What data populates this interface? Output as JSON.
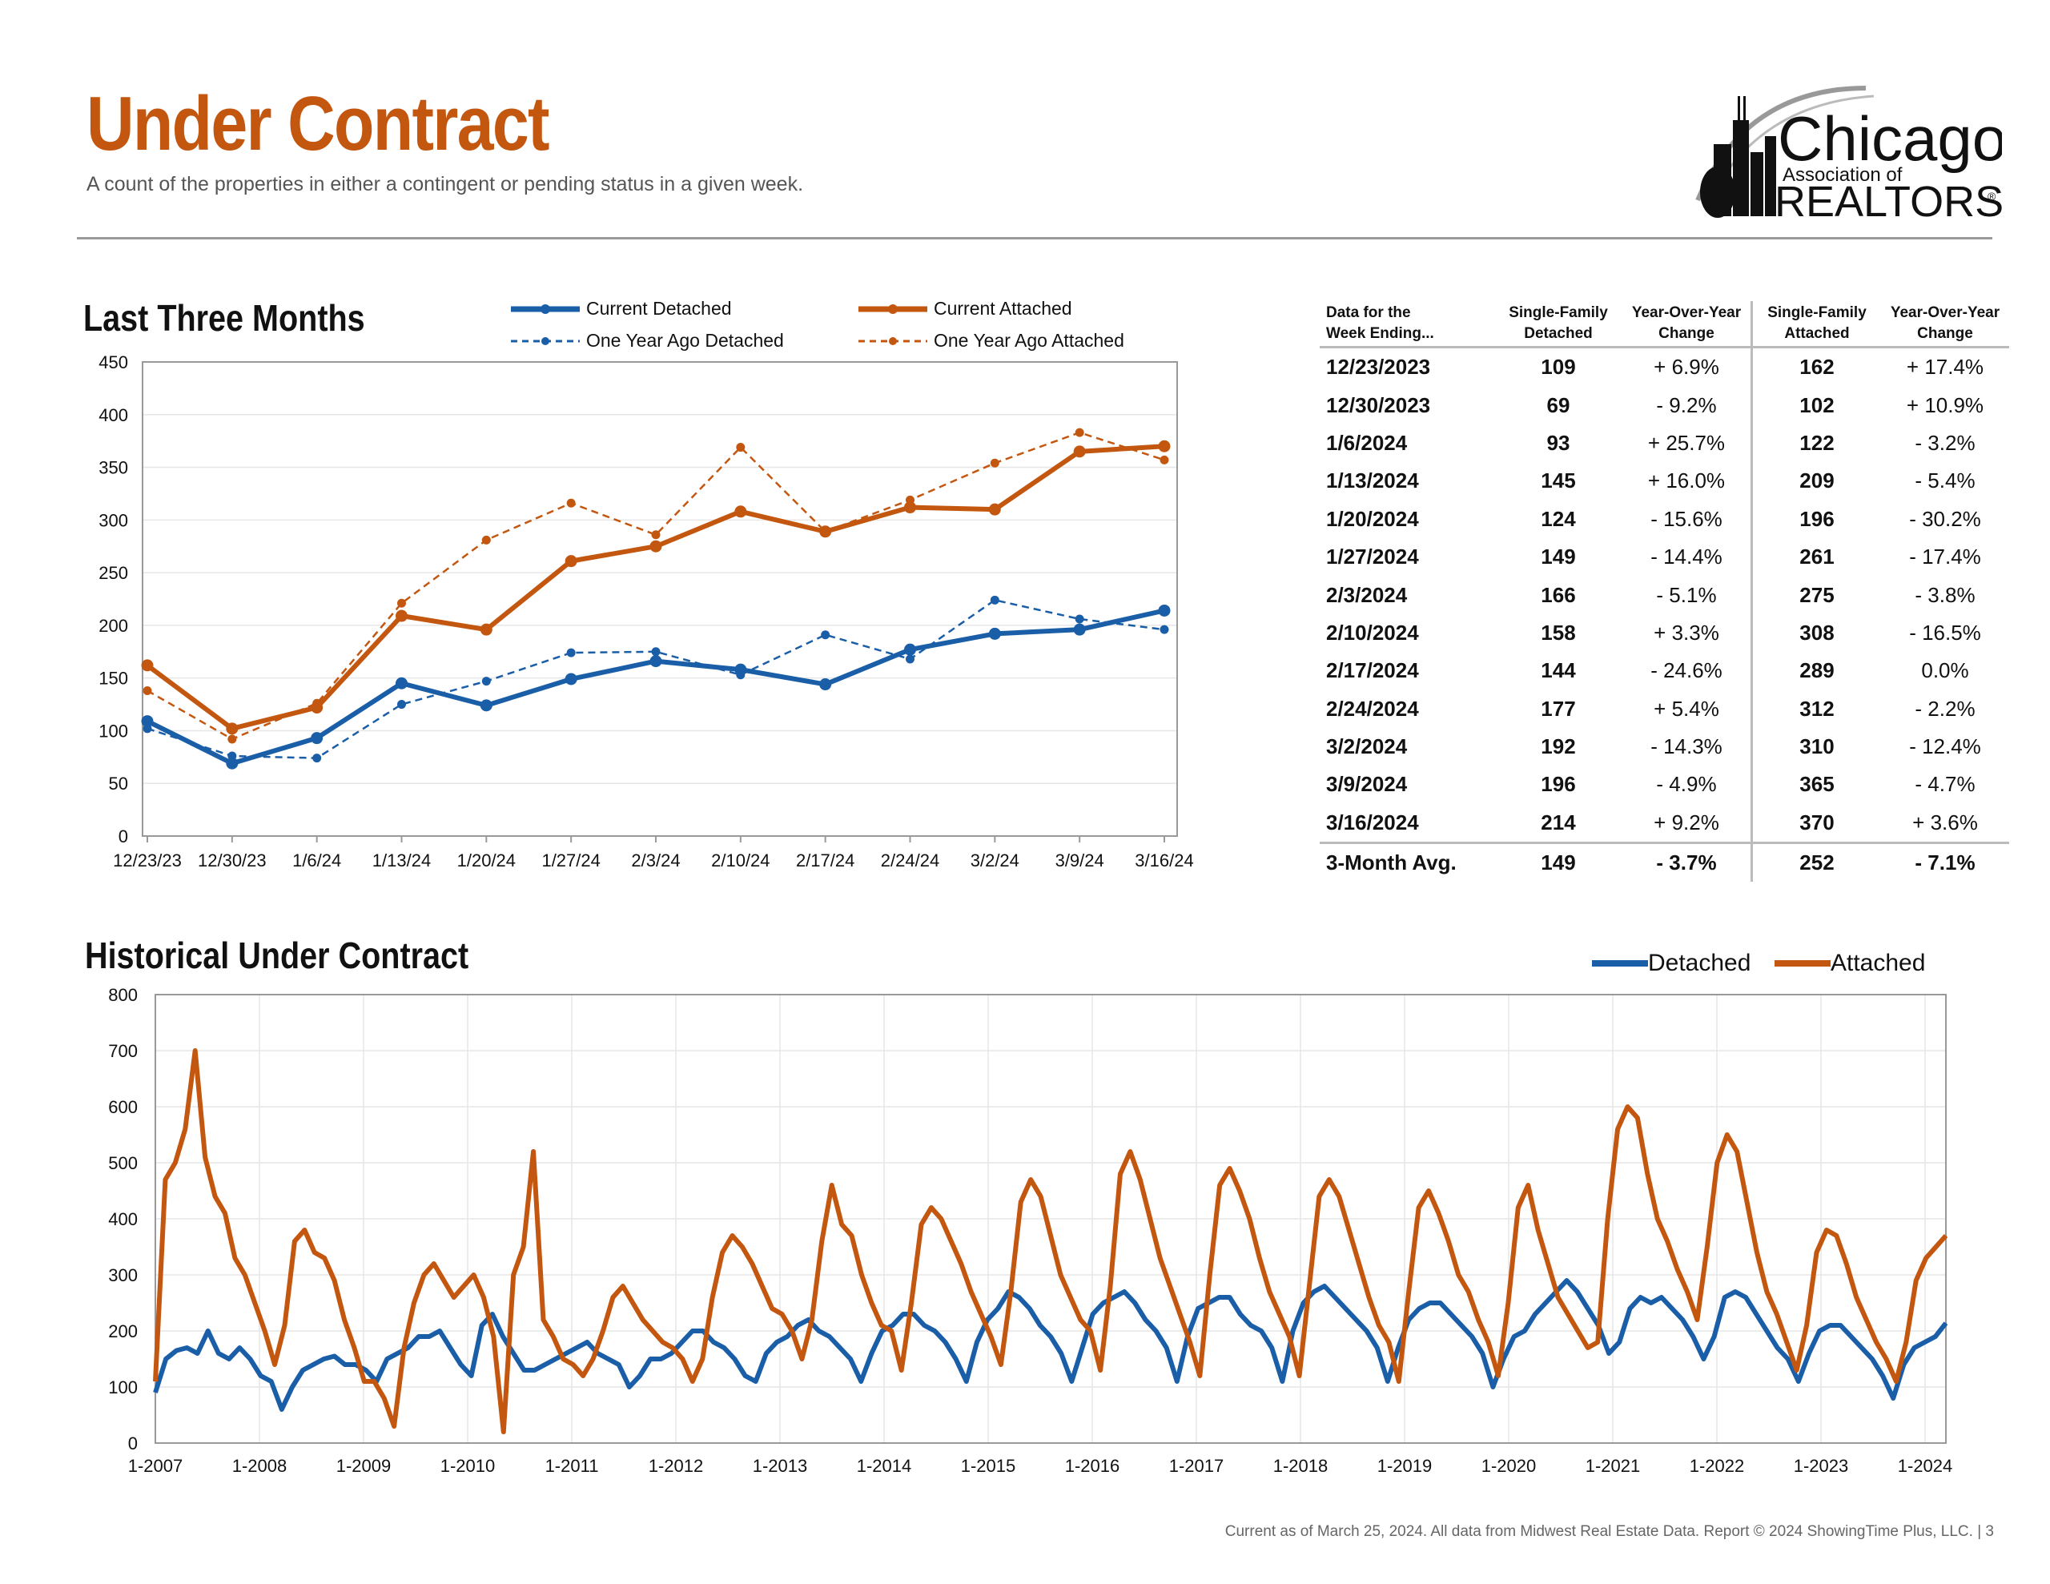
{
  "header": {
    "title": "Under Contract",
    "subtitle": "A count of the properties in either a contingent or pending status in a given week."
  },
  "logo": {
    "line1": "Chicago",
    "line2": "Association of",
    "line3": "REALTORS",
    "mark": "®"
  },
  "colors": {
    "detached": "#1a5ea8",
    "attached": "#c4570f",
    "accent": "#c4570f"
  },
  "section1": {
    "title": "Last Three Months"
  },
  "section2": {
    "title": "Historical Under Contract"
  },
  "legend1": {
    "current_detached": "Current Detached",
    "current_attached": "Current Attached",
    "year_ago_detached": "One Year Ago Detached",
    "year_ago_attached": "One Year Ago Attached"
  },
  "legend2": {
    "detached": "Detached",
    "attached": "Attached"
  },
  "table": {
    "headers": [
      "Data for the\nWeek Ending...",
      "Single-Family\nDetached",
      "Year-Over-Year\nChange",
      "Single-Family\nAttached",
      "Year-Over-Year\nChange"
    ],
    "rows": [
      [
        "12/23/2023",
        "109",
        "+ 6.9%",
        "162",
        "+ 17.4%"
      ],
      [
        "12/30/2023",
        "69",
        "- 9.2%",
        "102",
        "+ 10.9%"
      ],
      [
        "1/6/2024",
        "93",
        "+ 25.7%",
        "122",
        "- 3.2%"
      ],
      [
        "1/13/2024",
        "145",
        "+ 16.0%",
        "209",
        "- 5.4%"
      ],
      [
        "1/20/2024",
        "124",
        "- 15.6%",
        "196",
        "- 30.2%"
      ],
      [
        "1/27/2024",
        "149",
        "- 14.4%",
        "261",
        "- 17.4%"
      ],
      [
        "2/3/2024",
        "166",
        "- 5.1%",
        "275",
        "- 3.8%"
      ],
      [
        "2/10/2024",
        "158",
        "+ 3.3%",
        "308",
        "- 16.5%"
      ],
      [
        "2/17/2024",
        "144",
        "- 24.6%",
        "289",
        "0.0%"
      ],
      [
        "2/24/2024",
        "177",
        "+ 5.4%",
        "312",
        "- 2.2%"
      ],
      [
        "3/2/2024",
        "192",
        "- 14.3%",
        "310",
        "- 12.4%"
      ],
      [
        "3/9/2024",
        "196",
        "- 4.9%",
        "365",
        "- 4.7%"
      ],
      [
        "3/16/2024",
        "214",
        "+ 9.2%",
        "370",
        "+ 3.6%"
      ]
    ],
    "avg": [
      "3-Month Avg.",
      "149",
      "- 3.7%",
      "252",
      "- 7.1%"
    ]
  },
  "footer": "Current as of March 25, 2024.  All data from Midwest Real Estate Data. Report © 2024 ShowingTime Plus, LLC.  |  3",
  "chart_data": [
    {
      "type": "line",
      "title": "Last Three Months",
      "categories": [
        "12/23/23",
        "12/30/23",
        "1/6/24",
        "1/13/24",
        "1/20/24",
        "1/27/24",
        "2/3/24",
        "2/10/24",
        "2/17/24",
        "2/24/24",
        "3/2/24",
        "3/9/24",
        "3/16/24"
      ],
      "ylim": [
        0,
        450
      ],
      "yticks": [
        0,
        50,
        100,
        150,
        200,
        250,
        300,
        350,
        400,
        450
      ],
      "grid": true,
      "legend": "top",
      "series": [
        {
          "name": "Current Detached",
          "style": "solid",
          "color": "#1a5ea8",
          "values": [
            109,
            69,
            93,
            145,
            124,
            149,
            166,
            158,
            144,
            177,
            192,
            196,
            214
          ]
        },
        {
          "name": "Current Attached",
          "style": "solid",
          "color": "#c4570f",
          "values": [
            162,
            102,
            122,
            209,
            196,
            261,
            275,
            308,
            289,
            312,
            310,
            365,
            370
          ]
        },
        {
          "name": "One Year Ago Detached",
          "style": "dashed",
          "color": "#1a5ea8",
          "values": [
            102,
            76,
            74,
            125,
            147,
            174,
            175,
            153,
            191,
            168,
            224,
            206,
            196
          ]
        },
        {
          "name": "One Year Ago Attached",
          "style": "dashed",
          "color": "#c4570f",
          "values": [
            138,
            92,
            126,
            221,
            281,
            316,
            286,
            369,
            289,
            319,
            354,
            383,
            357
          ]
        }
      ]
    },
    {
      "type": "line",
      "title": "Historical Under Contract",
      "x_start": "1-2007",
      "xticks": [
        "1-2007",
        "1-2008",
        "1-2009",
        "1-2010",
        "1-2011",
        "1-2012",
        "1-2013",
        "1-2014",
        "1-2015",
        "1-2016",
        "1-2017",
        "1-2018",
        "1-2019",
        "1-2020",
        "1-2021",
        "1-2022",
        "1-2023",
        "1-2024"
      ],
      "ylim": [
        0,
        800
      ],
      "yticks": [
        0,
        100,
        200,
        300,
        400,
        500,
        600,
        700,
        800
      ],
      "grid": true,
      "legend": "top-right",
      "series": [
        {
          "name": "Detached",
          "color": "#1a5ea8",
          "values": [
            90,
            150,
            165,
            170,
            160,
            200,
            160,
            150,
            170,
            150,
            120,
            110,
            60,
            100,
            130,
            140,
            150,
            155,
            140,
            140,
            130,
            110,
            150,
            160,
            170,
            190,
            190,
            200,
            170,
            140,
            120,
            210,
            230,
            190,
            160,
            130,
            130,
            140,
            150,
            160,
            170,
            180,
            160,
            150,
            140,
            100,
            120,
            150,
            150,
            160,
            180,
            200,
            200,
            180,
            170,
            150,
            120,
            110,
            160,
            180,
            190,
            210,
            220,
            200,
            190,
            170,
            150,
            110,
            160,
            200,
            210,
            230,
            230,
            210,
            200,
            180,
            150,
            110,
            180,
            220,
            240,
            270,
            260,
            240,
            210,
            190,
            160,
            110,
            170,
            230,
            250,
            260,
            270,
            250,
            220,
            200,
            170,
            110,
            190,
            240,
            250,
            260,
            260,
            230,
            210,
            200,
            170,
            110,
            200,
            250,
            270,
            280,
            260,
            240,
            220,
            200,
            170,
            110,
            170,
            220,
            240,
            250,
            250,
            230,
            210,
            190,
            160,
            100,
            150,
            190,
            200,
            230,
            250,
            270,
            290,
            270,
            240,
            210,
            160,
            180,
            240,
            260,
            250,
            260,
            240,
            220,
            190,
            150,
            190,
            260,
            270,
            260,
            230,
            200,
            170,
            150,
            110,
            160,
            200,
            210,
            210,
            190,
            170,
            150,
            120,
            80,
            140,
            170,
            180,
            190,
            214
          ]
        },
        {
          "name": "Attached",
          "color": "#c4570f",
          "values": [
            110,
            470,
            500,
            560,
            700,
            510,
            440,
            410,
            330,
            300,
            250,
            200,
            140,
            210,
            360,
            380,
            340,
            330,
            290,
            220,
            170,
            110,
            110,
            80,
            30,
            170,
            250,
            300,
            320,
            290,
            260,
            280,
            300,
            260,
            190,
            20,
            300,
            350,
            520,
            220,
            190,
            150,
            140,
            120,
            150,
            200,
            260,
            280,
            250,
            220,
            200,
            180,
            170,
            150,
            110,
            150,
            260,
            340,
            370,
            350,
            320,
            280,
            240,
            230,
            200,
            150,
            220,
            360,
            460,
            390,
            370,
            300,
            250,
            210,
            200,
            130,
            250,
            390,
            420,
            400,
            360,
            320,
            270,
            230,
            190,
            140,
            270,
            430,
            470,
            440,
            370,
            300,
            260,
            220,
            200,
            130,
            280,
            480,
            520,
            470,
            400,
            330,
            280,
            230,
            180,
            120,
            300,
            460,
            490,
            450,
            400,
            330,
            270,
            230,
            190,
            120,
            280,
            440,
            470,
            440,
            380,
            320,
            260,
            210,
            180,
            110,
            270,
            420,
            450,
            410,
            360,
            300,
            270,
            220,
            180,
            120,
            250,
            420,
            460,
            380,
            320,
            260,
            230,
            200,
            170,
            180,
            400,
            560,
            600,
            580,
            480,
            400,
            360,
            310,
            270,
            220,
            350,
            500,
            550,
            520,
            430,
            340,
            270,
            230,
            180,
            130,
            210,
            340,
            380,
            370,
            320,
            260,
            220,
            180,
            150,
            110,
            180,
            290,
            330,
            350,
            370
          ]
        }
      ]
    }
  ]
}
